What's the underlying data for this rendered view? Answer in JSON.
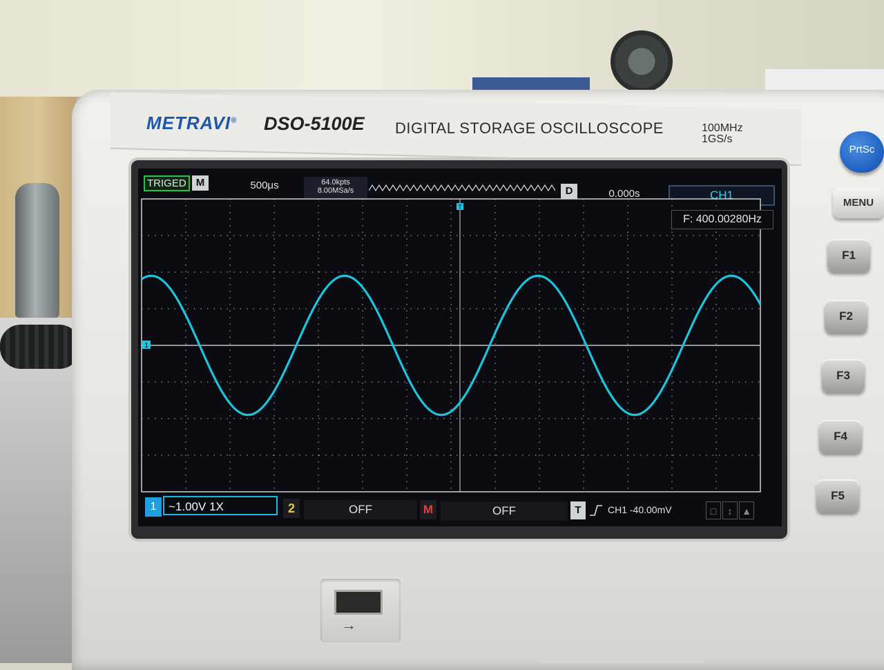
{
  "device": {
    "brand": "METRAVI",
    "brand_mark": "®",
    "model": "DSO-5100E",
    "description": "DIGITAL STORAGE OSCILLOSCOPE",
    "bandwidth": "100MHz",
    "sample_rate": "1GS/s"
  },
  "screen": {
    "top": {
      "trigger_status": "TRIGED",
      "m_label": "M",
      "timebase": "500μs",
      "memory_depth": "64.0kpts",
      "acq_rate": "8.00MSa/s",
      "d_label": "D",
      "delay": "0.000s",
      "selected_channel": "CH1"
    },
    "frequency_readout": "F: 400.00280Hz",
    "bottom": {
      "ch1_number": "1",
      "ch1_setting": "~1.00V  1X",
      "ch2_number": "2",
      "ch2_setting": "OFF",
      "math_label": "M",
      "math_setting": "OFF",
      "trigger_label": "T",
      "trigger_info": "CH1  -40.00mV"
    },
    "markers": {
      "trigger_marker": "T",
      "ch1_ground_marker": "1"
    }
  },
  "waveform": {
    "channel": "CH1",
    "color": "#1fc3dc",
    "frequency_hz": 400.0028,
    "cycles_visible": 3.2,
    "amplitude_divisions": 1.9,
    "phase_cycles": 0.2
  },
  "buttons": {
    "prtsc": "PrtSc",
    "menu": "MENU",
    "f1": "F1",
    "f2": "F2",
    "f3": "F3",
    "f4": "F4",
    "f5": "F5"
  },
  "colors": {
    "brand_blue": "#1e56a8",
    "trace_cyan": "#1fc3dc",
    "ch2_yellow": "#e6cc3a",
    "math_red": "#e04040",
    "triged_green": "#2cbf4a"
  }
}
